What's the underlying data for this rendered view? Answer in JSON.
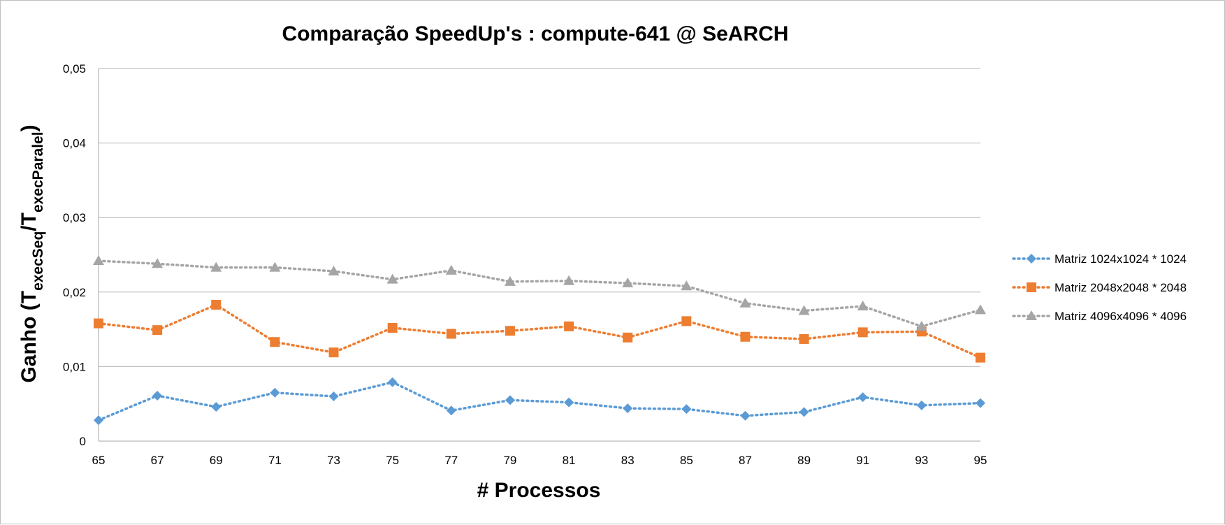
{
  "chart_data": {
    "type": "line",
    "title": "Comparação SpeedUp's : compute-641 @ SeARCH",
    "xlabel": "# Processos",
    "ylabel": {
      "main": "Ganho (T",
      "sub1": "execSeq",
      "mid": "/T",
      "sub2": "execParalel",
      "end": ")"
    },
    "x": [
      65,
      67,
      69,
      71,
      73,
      75,
      77,
      79,
      81,
      83,
      85,
      87,
      89,
      91,
      93,
      95
    ],
    "ylim": [
      0,
      0.05
    ],
    "yticks": [
      "0",
      "0,01",
      "0,02",
      "0,03",
      "0,04",
      "0,05"
    ],
    "grid": true,
    "legend_position": "right",
    "series": [
      {
        "name": "Matriz 1024x1024 * 1024",
        "color": "#5b9bd5",
        "marker": "diamond",
        "values": [
          0.0028,
          0.0061,
          0.0046,
          0.0065,
          0.006,
          0.0079,
          0.0041,
          0.0055,
          0.0052,
          0.0044,
          0.0043,
          0.0034,
          0.0039,
          0.0059,
          0.0048,
          0.0051
        ]
      },
      {
        "name": "Matriz 2048x2048 * 2048",
        "color": "#ed7d31",
        "marker": "square",
        "values": [
          0.0158,
          0.0149,
          0.0183,
          0.0133,
          0.0119,
          0.0152,
          0.0144,
          0.0148,
          0.0154,
          0.0139,
          0.0161,
          0.014,
          0.0137,
          0.0146,
          0.0147,
          0.0112
        ]
      },
      {
        "name": "Matriz 4096x4096 * 4096",
        "color": "#a5a5a5",
        "marker": "triangle",
        "values": [
          0.0242,
          0.0238,
          0.0233,
          0.0233,
          0.0228,
          0.0217,
          0.0229,
          0.0214,
          0.0215,
          0.0212,
          0.0208,
          0.0185,
          0.0175,
          0.0181,
          0.0154,
          0.0176
        ]
      }
    ]
  }
}
